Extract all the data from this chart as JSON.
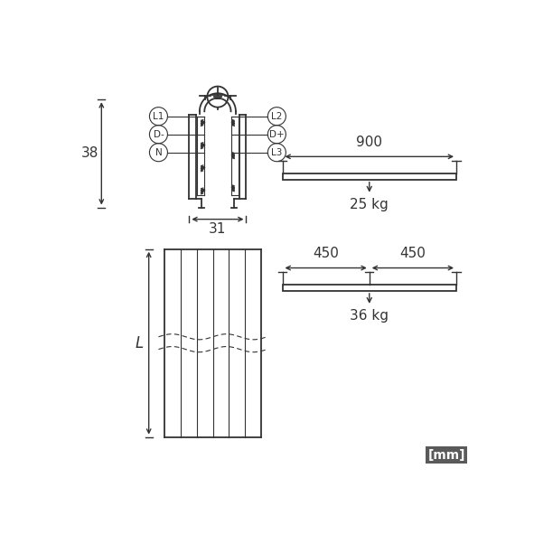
{
  "bg_color": "#ffffff",
  "line_color": "#333333",
  "mm_box_color": "#5a5a5a",
  "mm_box_text": "[mm]",
  "dim_38": "38",
  "dim_31": "31",
  "dim_L": "L",
  "dim_900": "900",
  "dim_25kg": "25 kg",
  "dim_450a": "450",
  "dim_450b": "450",
  "dim_36kg": "36 kg",
  "labels_left": [
    "L1",
    "D-",
    "N"
  ],
  "labels_right": [
    "L2",
    "D+",
    "L3"
  ],
  "figsize": [
    5.91,
    5.91
  ],
  "dpi": 100
}
